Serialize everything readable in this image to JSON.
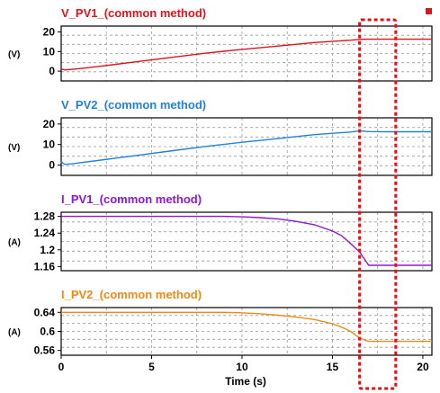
{
  "chart_data": [
    {
      "type": "line",
      "title": "V_PV1_(common method)",
      "ylabel": "(V)",
      "color": "#e0131a",
      "ylim": [
        -5,
        23
      ],
      "yticks": [
        20,
        10,
        0
      ],
      "xlim": [
        0,
        20.5
      ],
      "series": [
        {
          "x": [
            0,
            0.2,
            0.6,
            1,
            2,
            4,
            6,
            8,
            10,
            12,
            14,
            16,
            16.5,
            17,
            18,
            19,
            20,
            20.5
          ],
          "y": [
            1.2,
            0.6,
            0.9,
            1.3,
            2.3,
            4.6,
            6.9,
            9.2,
            11.1,
            12.8,
            14.6,
            15.8,
            16.2,
            16.3,
            16.3,
            16.3,
            16.3,
            16.3
          ]
        }
      ]
    },
    {
      "type": "line",
      "title": "V_PV2_(common method)",
      "ylabel": "(V)",
      "color": "#1f82d6",
      "ylim": [
        -5,
        23
      ],
      "yticks": [
        20,
        10,
        0
      ],
      "xlim": [
        0,
        20.5
      ],
      "series": [
        {
          "x": [
            0,
            0.2,
            0.6,
            1,
            2,
            4,
            6,
            8,
            10,
            12,
            14,
            16,
            16.5,
            17,
            18,
            19,
            20,
            20.5
          ],
          "y": [
            1.5,
            0.4,
            0.6,
            1.1,
            2.2,
            4.5,
            6.8,
            9.1,
            11.1,
            12.9,
            14.8,
            16.1,
            16.6,
            16.3,
            16.2,
            16.2,
            16.2,
            16.2
          ]
        }
      ]
    },
    {
      "type": "line",
      "title": "I_PV1_(common method)",
      "ylabel": "(A)",
      "color": "#8b18d8",
      "ylim": [
        1.15,
        1.29
      ],
      "yticks": [
        1.28,
        1.24,
        1.2,
        1.16
      ],
      "xlim": [
        0,
        20.5
      ],
      "series": [
        {
          "x": [
            0,
            5,
            9,
            10,
            11,
            12,
            13,
            14,
            15,
            15.5,
            16,
            16.5,
            17,
            18,
            19,
            20,
            20.5
          ],
          "y": [
            1.28,
            1.28,
            1.28,
            1.279,
            1.277,
            1.274,
            1.268,
            1.26,
            1.245,
            1.234,
            1.215,
            1.195,
            1.163,
            1.163,
            1.163,
            1.163,
            1.163
          ]
        }
      ]
    },
    {
      "type": "line",
      "title": "I_PV2_(common method)",
      "ylabel": "(A)",
      "color": "#f08a14",
      "ylim": [
        0.55,
        0.65
      ],
      "yticks": [
        0.64,
        0.6,
        0.56
      ],
      "xlim": [
        0,
        20.5
      ],
      "series": [
        {
          "x": [
            0,
            5,
            9,
            10,
            11,
            12,
            13,
            14,
            15,
            15.5,
            16,
            16.5,
            17,
            18,
            19,
            20,
            20.5
          ],
          "y": [
            0.64,
            0.64,
            0.64,
            0.639,
            0.637,
            0.634,
            0.63,
            0.625,
            0.616,
            0.609,
            0.6,
            0.586,
            0.579,
            0.579,
            0.579,
            0.579,
            0.579
          ]
        }
      ]
    }
  ],
  "x_axis": {
    "label": "Time (s)",
    "ticks": [
      0,
      5,
      10,
      15,
      20
    ]
  },
  "highlight": {
    "x_range": [
      16.5,
      18.5
    ],
    "color": "#e0131a"
  },
  "marker_color": "#e0131a"
}
